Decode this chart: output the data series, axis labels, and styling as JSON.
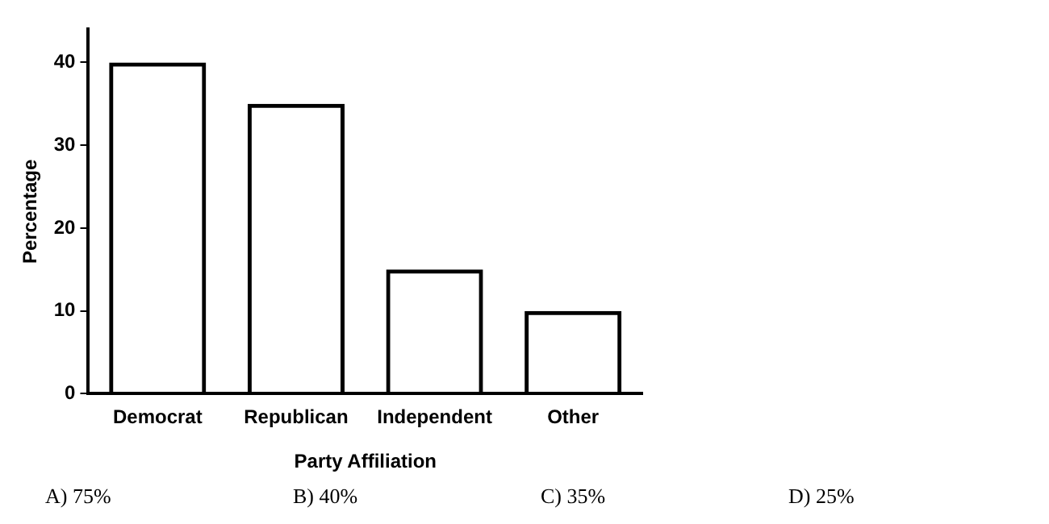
{
  "chart_data": {
    "type": "bar",
    "xlabel": "Party Affiliation",
    "ylabel": "Percentage",
    "categories": [
      "Democrat",
      "Republican",
      "Independent",
      "Other"
    ],
    "values": [
      40,
      35,
      15,
      10
    ],
    "color": "#000000",
    "ylim": [
      0,
      44
    ],
    "yticks": [
      0,
      10,
      20,
      30,
      40
    ],
    "grid": false,
    "legend": false,
    "annotations": [
      "A) 75%",
      "B) 40%",
      "C) 35%",
      "D) 25%"
    ]
  }
}
